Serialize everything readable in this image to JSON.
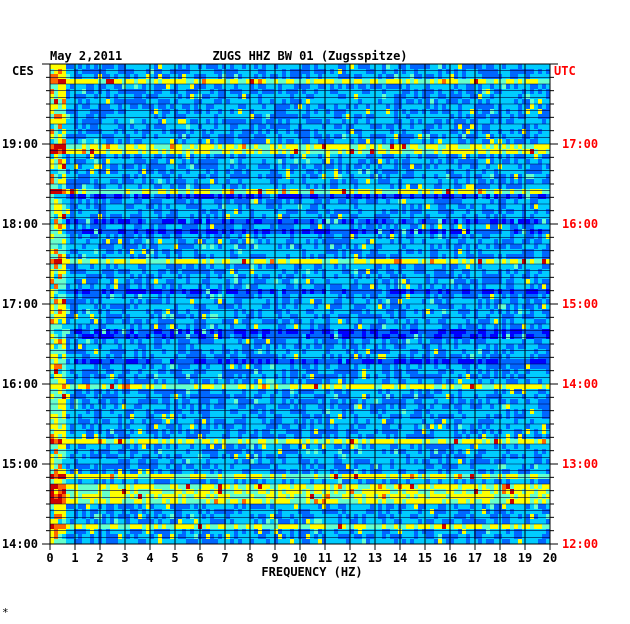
{
  "chart_data": {
    "type": "heatmap",
    "date": "May 2,2011",
    "title": "ZUGS HHZ BW 01 (Zugsspitze)",
    "xlabel": "FREQUENCY (HZ)",
    "left_tz": "CES",
    "right_tz": "UTC",
    "xlim": [
      0,
      20
    ],
    "x_ticks": [
      "0",
      "1",
      "2",
      "3",
      "4",
      "5",
      "6",
      "7",
      "8",
      "9",
      "10",
      "11",
      "12",
      "13",
      "14",
      "15",
      "16",
      "17",
      "18",
      "19",
      "20"
    ],
    "left_time_range": [
      "14:00",
      "19:58"
    ],
    "left_ticks": [
      "19:00",
      "18:00",
      "17:00",
      "16:00",
      "15:00",
      "14:00"
    ],
    "right_ticks": [
      "17:00",
      "16:00",
      "15:00",
      "14:00",
      "13:00",
      "12:00"
    ],
    "colormap": [
      "#000080",
      "#0000ff",
      "#0066ff",
      "#00ccff",
      "#66ffcc",
      "#ffff00",
      "#ff6600",
      "#cc0000"
    ],
    "right_label_color": "#ff0000",
    "footnote": "*"
  }
}
